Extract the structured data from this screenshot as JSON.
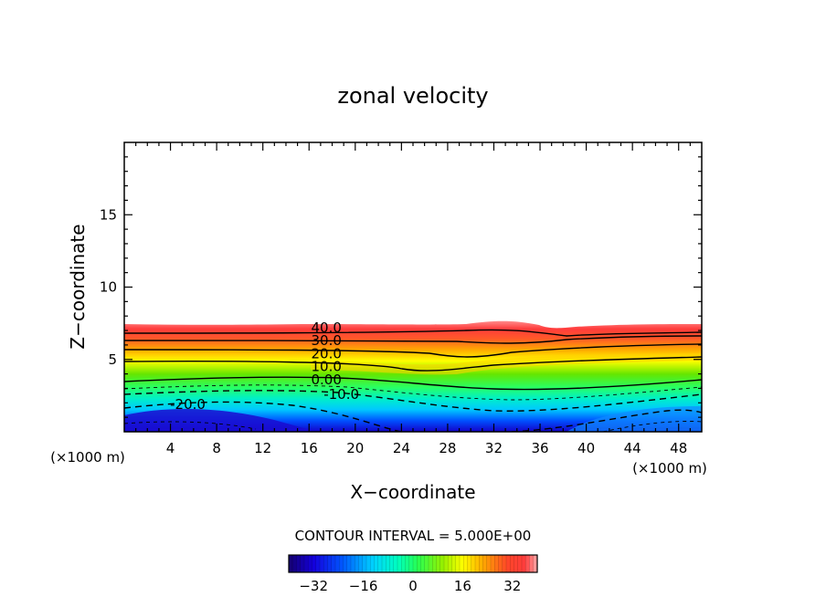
{
  "chart_data": {
    "type": "contour",
    "title": "zonal velocity",
    "xlabel": "X−coordinate",
    "ylabel": "Z−coordinate",
    "x_unit": "(×1000 m)",
    "xlim": [
      0,
      50
    ],
    "ylim": [
      0,
      20
    ],
    "x_ticks": [
      4,
      8,
      12,
      16,
      20,
      24,
      28,
      32,
      36,
      40,
      44,
      48
    ],
    "y_ticks": [
      5,
      10,
      15
    ],
    "contour_interval_text": "CONTOUR INTERVAL = 5.000E+00",
    "contour_interval": 5,
    "field_top_z": 7.4,
    "contour_labels": [
      {
        "text": "40.0",
        "x": 17.5,
        "z": 7.2
      },
      {
        "text": "30.0",
        "x": 17.5,
        "z": 6.3
      },
      {
        "text": "20.0",
        "x": 17.5,
        "z": 5.4
      },
      {
        "text": "10.0",
        "x": 17.5,
        "z": 4.5
      },
      {
        "text": "0.00",
        "x": 17.5,
        "z": 3.6
      },
      {
        "text": "-10.0",
        "x": 18.8,
        "z": 2.6
      },
      {
        "text": "-20.0",
        "x": 5.5,
        "z": 1.9
      }
    ],
    "colorbar": {
      "range": [
        -40,
        40
      ],
      "ticks": [
        -32,
        -16,
        0,
        16,
        32
      ],
      "colors": [
        "#1a0080",
        "#0033ff",
        "#00ccff",
        "#00ff66",
        "#ffff00",
        "#ff6600",
        "#ff3333",
        "#ffaaaa"
      ]
    }
  }
}
